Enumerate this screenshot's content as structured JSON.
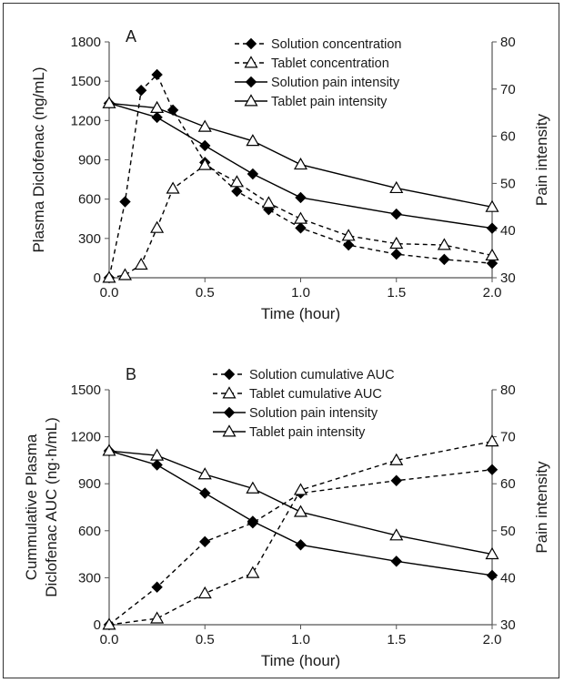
{
  "chart_data": [
    {
      "type": "line",
      "panel_label": "A",
      "xlabel": "Time (hour)",
      "ylabel": "Plasma Diclofenac (ng/mL)",
      "y2label": "Pain intensity",
      "xlim": [
        0,
        2
      ],
      "ylim": [
        0,
        1800
      ],
      "y2lim": [
        30,
        80
      ],
      "xticks": [
        "0.0",
        "0.5",
        "1.0",
        "1.5",
        "2.0"
      ],
      "yticks": [
        "0",
        "300",
        "600",
        "900",
        "1200",
        "1500",
        "1800"
      ],
      "y2ticks": [
        "30",
        "40",
        "50",
        "60",
        "70",
        "80"
      ],
      "legend_position": "top-right",
      "grid": false,
      "series": [
        {
          "name": "Solution concentration",
          "axis": "left",
          "style": "dashed",
          "marker": "filled-diamond",
          "color": "#000000",
          "x": [
            0,
            0.083,
            0.167,
            0.25,
            0.333,
            0.5,
            0.667,
            0.833,
            1.0,
            1.25,
            1.5,
            1.75,
            2.0
          ],
          "y": [
            0,
            580,
            1430,
            1550,
            1280,
            880,
            660,
            520,
            380,
            250,
            180,
            140,
            110
          ]
        },
        {
          "name": "Tablet concentration",
          "axis": "left",
          "style": "dashed",
          "marker": "open-triangle",
          "color": "#000000",
          "x": [
            0,
            0.083,
            0.167,
            0.25,
            0.333,
            0.5,
            0.667,
            0.833,
            1.0,
            1.25,
            1.5,
            1.75,
            2.0
          ],
          "y": [
            0,
            20,
            100,
            380,
            680,
            860,
            730,
            570,
            450,
            320,
            260,
            250,
            170
          ]
        },
        {
          "name": "Solution pain intensity",
          "axis": "right",
          "style": "solid",
          "marker": "filled-diamond",
          "color": "#000000",
          "x": [
            0,
            0.25,
            0.5,
            0.75,
            1.0,
            1.5,
            2.0
          ],
          "y": [
            67,
            64,
            58,
            52,
            47,
            43.5,
            40.5
          ]
        },
        {
          "name": "Tablet pain intensity",
          "axis": "right",
          "style": "solid",
          "marker": "open-triangle",
          "color": "#000000",
          "x": [
            0,
            0.25,
            0.5,
            0.75,
            1.0,
            1.5,
            2.0
          ],
          "y": [
            67,
            66,
            62,
            59,
            54,
            49,
            45
          ]
        }
      ]
    },
    {
      "type": "line",
      "panel_label": "B",
      "xlabel": "Time (hour)",
      "ylabel": "Cummulative Plasma",
      "ylabel2": "Diclofenac AUC (ng·h/mL)",
      "y2label": "Pain intensity",
      "xlim": [
        0,
        2
      ],
      "ylim": [
        0,
        1500
      ],
      "y2lim": [
        30,
        80
      ],
      "xticks": [
        "0.0",
        "0.5",
        "1.0",
        "1.5",
        "2.0"
      ],
      "yticks": [
        "0",
        "300",
        "600",
        "900",
        "1200",
        "1500"
      ],
      "y2ticks": [
        "30",
        "40",
        "50",
        "60",
        "70",
        "80"
      ],
      "legend_position": "top-center",
      "grid": false,
      "series": [
        {
          "name": "Solution cumulative AUC",
          "axis": "left",
          "style": "dashed",
          "marker": "filled-diamond",
          "color": "#000000",
          "x": [
            0,
            0.25,
            0.5,
            0.75,
            1.0,
            1.5,
            2.0
          ],
          "y": [
            0,
            240,
            530,
            650,
            840,
            920,
            990
          ]
        },
        {
          "name": "Tablet cumulative AUC",
          "axis": "left",
          "style": "dashed",
          "marker": "open-triangle",
          "color": "#000000",
          "x": [
            0,
            0.25,
            0.5,
            0.75,
            1.0,
            1.5,
            2.0
          ],
          "y": [
            0,
            40,
            200,
            330,
            860,
            1050,
            1170
          ]
        },
        {
          "name": "Solution pain intensity",
          "axis": "right",
          "style": "solid",
          "marker": "filled-diamond",
          "color": "#000000",
          "x": [
            0,
            0.25,
            0.5,
            0.75,
            1.0,
            1.5,
            2.0
          ],
          "y": [
            67,
            64,
            58,
            52,
            47,
            43.5,
            40.5
          ]
        },
        {
          "name": "Tablet pain intensity",
          "axis": "right",
          "style": "solid",
          "marker": "open-triangle",
          "color": "#000000",
          "x": [
            0,
            0.25,
            0.5,
            0.75,
            1.0,
            1.5,
            2.0
          ],
          "y": [
            67,
            66,
            62,
            59,
            54,
            49,
            45
          ]
        }
      ]
    }
  ]
}
